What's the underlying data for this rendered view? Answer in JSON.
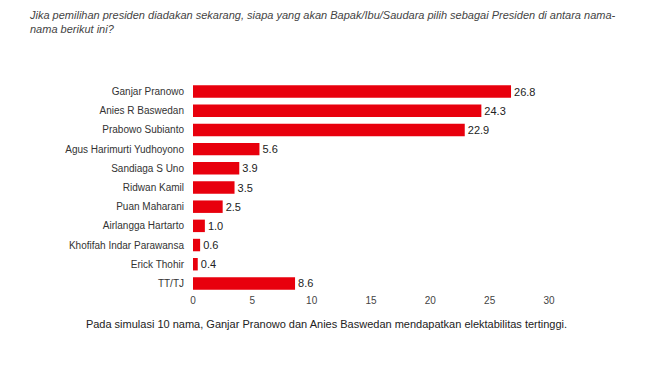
{
  "chart_data": {
    "type": "bar",
    "orientation": "horizontal",
    "title": "Jika pemilihan presiden diadakan sekarang, siapa yang akan Bapak/Ibu/Saudara pilih sebagai Presiden di antara nama-nama berikut ini?",
    "subtitle": "Pada simulasi 10 nama, Ganjar Pranowo dan Anies Baswedan mendapatkan elektabilitas tertinggi.",
    "categories": [
      "Ganjar Pranowo",
      "Anies R Baswedan",
      "Prabowo Subianto",
      "Agus Harimurti Yudhoyono",
      "Sandiaga S Uno",
      "Ridwan Kamil",
      "Puan Maharani",
      "Airlangga Hartarto",
      "Khofifah Indar Parawansa",
      "Erick Thohir",
      "TT/TJ"
    ],
    "values": [
      26.8,
      24.3,
      22.9,
      5.6,
      3.9,
      3.5,
      2.5,
      1.0,
      0.6,
      0.4,
      8.6
    ],
    "value_labels": [
      "26.8",
      "24.3",
      "22.9",
      "5.6",
      "3.9",
      "3.5",
      "2.5",
      "1.0",
      "0.6",
      "0.4",
      "8.6"
    ],
    "color": "#e8000d",
    "xlim": [
      0,
      30
    ],
    "xticks": [
      0,
      5,
      10,
      15,
      20,
      25,
      30
    ],
    "grid": false,
    "data_labels": true
  }
}
